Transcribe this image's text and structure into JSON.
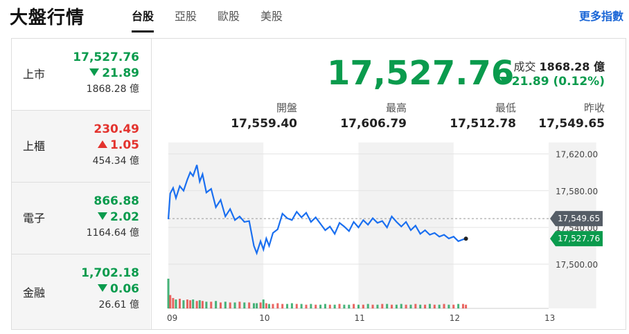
{
  "header": {
    "title": "大盤行情",
    "more_label": "更多指數"
  },
  "tabs": [
    {
      "label": "台股",
      "active": true
    },
    {
      "label": "亞股",
      "active": false
    },
    {
      "label": "歐股",
      "active": false
    },
    {
      "label": "美股",
      "active": false
    }
  ],
  "sidebar": [
    {
      "name": "上市",
      "price": "17,527.76",
      "change": "21.89",
      "direction": "down",
      "volume": "1868.28 億"
    },
    {
      "name": "上櫃",
      "price": "230.49",
      "change": "1.05",
      "direction": "up",
      "volume": "454.34 億"
    },
    {
      "name": "電子",
      "price": "866.88",
      "change": "2.02",
      "direction": "down",
      "volume": "1164.64 億"
    },
    {
      "name": "金融",
      "price": "1,702.18",
      "change": "0.06",
      "direction": "down",
      "volume": "26.61 億"
    }
  ],
  "main": {
    "price": "17,527.76",
    "volume_label": "成交",
    "volume_value": "1868.28 億",
    "change": "21.89 (0.12%)",
    "stats": [
      {
        "label": "開盤",
        "value": "17,559.40"
      },
      {
        "label": "最高",
        "value": "17,606.79"
      },
      {
        "label": "最低",
        "value": "17,512.78"
      },
      {
        "label": "昨收",
        "value": "17,549.65"
      }
    ]
  },
  "colors": {
    "up": "#e3332e",
    "down": "#0a9b4d",
    "line": "#1a6ff0"
  },
  "chart_data": {
    "type": "line",
    "x_ticks": [
      "09",
      "10",
      "11",
      "12",
      "13"
    ],
    "y_ticks": [
      "17,620.00",
      "17,580.00",
      "17,540.00",
      "17,500.00"
    ],
    "ylim": [
      17488,
      17628
    ],
    "reference_value": 17549.65,
    "reference_label": "17,549.65",
    "last_label": "17,527.76",
    "last_value": 17527.76,
    "x_hours": [
      9.0,
      9.02,
      9.05,
      9.08,
      9.12,
      9.16,
      9.2,
      9.23,
      9.26,
      9.3,
      9.33,
      9.36,
      9.4,
      9.45,
      9.5,
      9.55,
      9.6,
      9.65,
      9.7,
      9.75,
      9.8,
      9.85,
      9.9,
      9.93,
      9.97,
      10.0,
      10.03,
      10.06,
      10.1,
      10.15,
      10.2,
      10.25,
      10.3,
      10.35,
      10.4,
      10.45,
      10.5,
      10.55,
      10.6,
      10.65,
      10.7,
      10.75,
      10.8,
      10.85,
      10.9,
      10.95,
      11.0,
      11.05,
      11.1,
      11.15,
      11.2,
      11.25,
      11.3,
      11.35,
      11.4,
      11.45,
      11.5,
      11.55,
      11.6,
      11.65,
      11.7,
      11.75,
      11.8,
      11.85,
      11.9,
      11.95,
      12.0,
      12.05,
      12.1,
      12.13
    ],
    "values": [
      17549,
      17577,
      17583,
      17572,
      17585,
      17580,
      17592,
      17600,
      17596,
      17608,
      17590,
      17598,
      17578,
      17582,
      17562,
      17570,
      17552,
      17560,
      17548,
      17552,
      17546,
      17547,
      17520,
      17512,
      17525,
      17516,
      17528,
      17520,
      17534,
      17538,
      17555,
      17550,
      17548,
      17557,
      17551,
      17556,
      17546,
      17551,
      17544,
      17537,
      17541,
      17533,
      17545,
      17541,
      17536,
      17546,
      17540,
      17548,
      17543,
      17550,
      17545,
      17547,
      17540,
      17552,
      17546,
      17541,
      17546,
      17537,
      17542,
      17533,
      17537,
      17532,
      17534,
      17530,
      17532,
      17528,
      17530,
      17525,
      17527,
      17527.76
    ],
    "volumes": [
      40,
      18,
      14,
      12,
      13,
      11,
      12,
      11,
      12,
      10,
      11,
      10,
      9,
      9,
      10,
      8,
      9,
      8,
      8,
      9,
      8,
      8,
      7,
      7,
      8,
      12,
      7,
      6,
      6,
      7,
      6,
      6,
      7,
      6,
      6,
      5,
      6,
      5,
      5,
      6,
      5,
      5,
      6,
      5,
      5,
      6,
      5,
      5,
      6,
      5,
      5,
      6,
      6,
      5,
      5,
      6,
      5,
      5,
      6,
      5,
      5,
      6,
      5,
      5,
      6,
      5,
      5,
      6,
      6,
      5
    ]
  }
}
